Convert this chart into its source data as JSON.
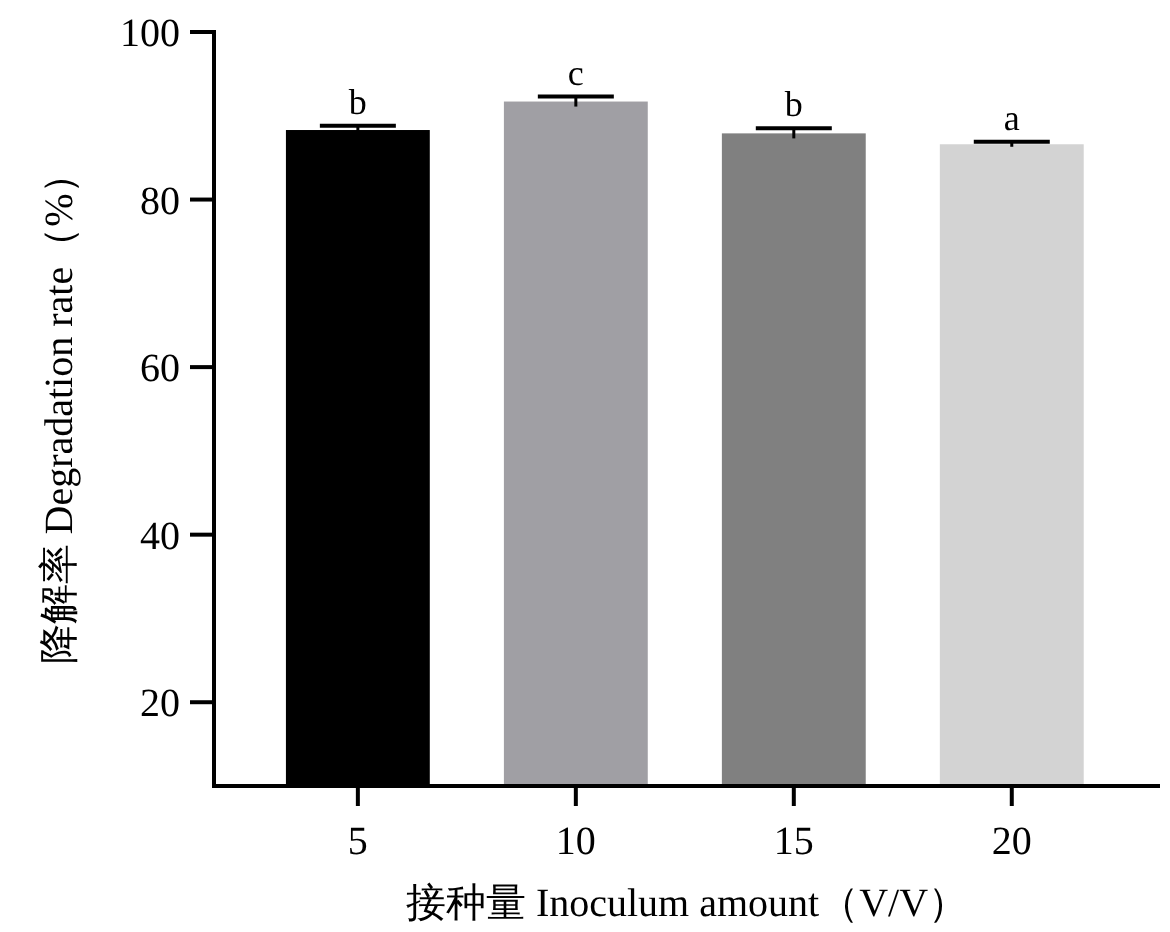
{
  "chart_data": {
    "type": "bar",
    "xlabel": "接种量 Inoculum amount（V/V）",
    "ylabel": "降解率 Degradation rate（%）",
    "categories": [
      "5",
      "10",
      "15",
      "20"
    ],
    "values": [
      88.3,
      91.7,
      87.9,
      86.6
    ],
    "colors": [
      "#000000",
      "#a09fa4",
      "#808080",
      "#d3d3d3"
    ],
    "errors": [
      0.5,
      0.6,
      0.6,
      0.3
    ],
    "ylim": [
      10,
      100
    ],
    "yticks": [
      20,
      40,
      60,
      80,
      100
    ],
    "grid": false,
    "annotations": [
      {
        "text": "b",
        "x": "5",
        "y": 88.8
      },
      {
        "text": "c",
        "x": "10",
        "y": 92.3
      },
      {
        "text": "b",
        "x": "15",
        "y": 88.5
      },
      {
        "text": "a",
        "x": "20",
        "y": 86.9
      }
    ]
  }
}
